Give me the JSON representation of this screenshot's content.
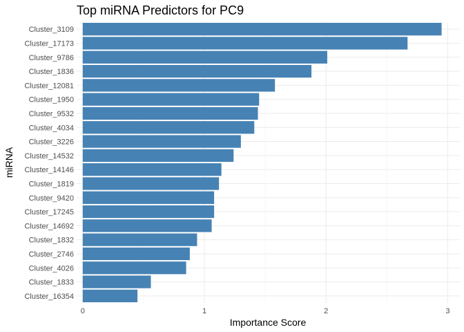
{
  "chart_data": {
    "type": "bar",
    "orientation": "horizontal",
    "title": "Top miRNA Predictors for PC9",
    "xlabel": "Importance Score",
    "ylabel": "miRNA",
    "xlim": [
      -0.05,
      3.1
    ],
    "xticks": [
      0,
      1,
      2,
      3
    ],
    "xtick_labels": [
      "0",
      "1",
      "2",
      "3"
    ],
    "grid": true,
    "legend": "none",
    "bar_color": "#4682B4",
    "categories": [
      "Cluster_3109",
      "Cluster_17173",
      "Cluster_9786",
      "Cluster_1836",
      "Cluster_12081",
      "Cluster_1950",
      "Cluster_9532",
      "Cluster_4034",
      "Cluster_3226",
      "Cluster_14532",
      "Cluster_14146",
      "Cluster_1819",
      "Cluster_9420",
      "Cluster_17245",
      "Cluster_14692",
      "Cluster_1832",
      "Cluster_2746",
      "Cluster_4026",
      "Cluster_1833",
      "Cluster_16354"
    ],
    "values": [
      2.95,
      2.67,
      2.01,
      1.88,
      1.58,
      1.45,
      1.44,
      1.41,
      1.3,
      1.24,
      1.14,
      1.12,
      1.08,
      1.08,
      1.06,
      0.94,
      0.88,
      0.85,
      0.56,
      0.45
    ]
  }
}
